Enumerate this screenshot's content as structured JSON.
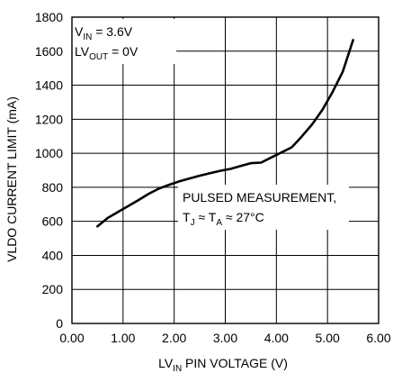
{
  "chart_data": {
    "type": "line",
    "xlabel": {
      "base": "LV",
      "sub": "IN",
      "rest": " PIN VOLTAGE (V)"
    },
    "ylabel": "VLDO CURRENT LIMIT (mA)",
    "xlim": [
      0,
      6
    ],
    "ylim": [
      0,
      1800
    ],
    "x_ticks": [
      "0.00",
      "1.00",
      "2.00",
      "3.00",
      "4.00",
      "5.00",
      "6.00"
    ],
    "y_ticks": [
      "0",
      "200",
      "400",
      "600",
      "800",
      "1000",
      "1200",
      "1400",
      "1600",
      "1800"
    ],
    "grid": true,
    "annotations": {
      "vin": {
        "base": "V",
        "sub": "IN",
        "rest": " = 3.6V"
      },
      "lvout": {
        "base": "LV",
        "sub": "OUT",
        "rest": " = 0V"
      },
      "pulsed": "PULSED MEASUREMENT,",
      "temp": {
        "t1": "T",
        "t1sub": "J",
        "mid": " ≈ T",
        "t2sub": "A",
        "rest": " ≈ 27°C"
      }
    },
    "series": [
      {
        "points": [
          [
            0.5,
            570
          ],
          [
            0.7,
            620
          ],
          [
            0.9,
            655
          ],
          [
            1.1,
            690
          ],
          [
            1.3,
            725
          ],
          [
            1.5,
            762
          ],
          [
            1.7,
            792
          ],
          [
            1.9,
            815
          ],
          [
            2.1,
            835
          ],
          [
            2.3,
            852
          ],
          [
            2.5,
            868
          ],
          [
            2.7,
            883
          ],
          [
            2.9,
            897
          ],
          [
            3.1,
            908
          ],
          [
            3.3,
            925
          ],
          [
            3.5,
            942
          ],
          [
            3.7,
            945
          ],
          [
            3.9,
            975
          ],
          [
            4.1,
            1005
          ],
          [
            4.3,
            1035
          ],
          [
            4.5,
            1100
          ],
          [
            4.7,
            1170
          ],
          [
            4.9,
            1255
          ],
          [
            5.1,
            1360
          ],
          [
            5.3,
            1480
          ],
          [
            5.5,
            1665
          ]
        ]
      }
    ]
  }
}
